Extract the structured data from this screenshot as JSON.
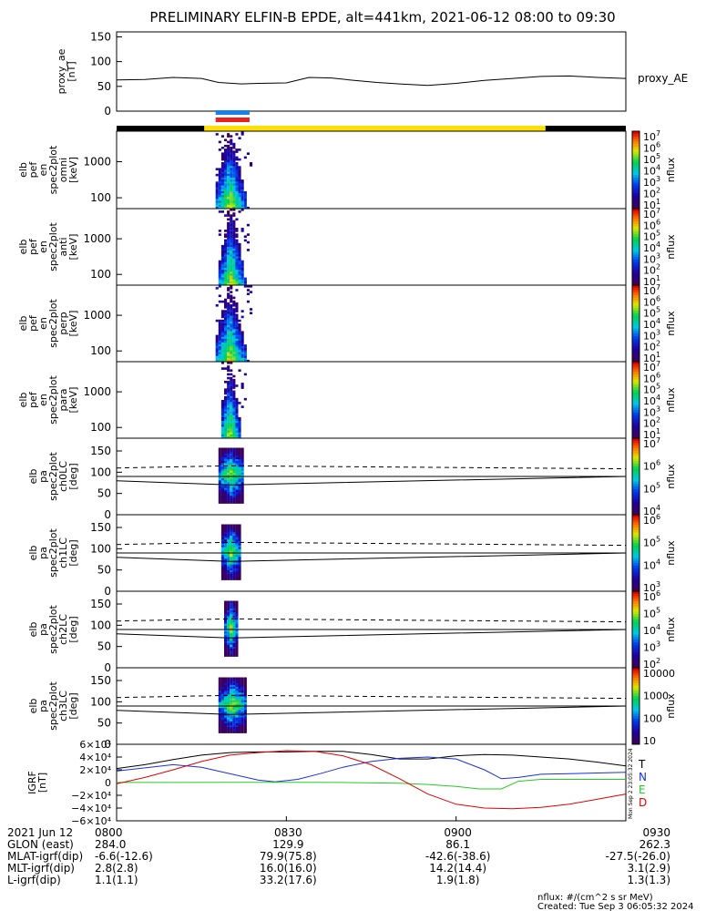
{
  "title": "PRELIMINARY ELFIN-B EPDE, alt=441km, 2021-06-12 08:00 to 09:30",
  "time_range": [
    "08:00",
    "09:30"
  ],
  "bottom_axis": {
    "tick_labels": [
      "0800",
      "0830",
      "0900",
      "0930"
    ],
    "tick_times_min": [
      0,
      30,
      60,
      90
    ]
  },
  "ephemeris": {
    "rows": [
      {
        "label": "2021 Jun 12",
        "values": [
          "0800",
          "0830",
          "0900",
          "0930"
        ]
      },
      {
        "label": "GLON (east)",
        "values": [
          "284.0",
          "129.9",
          "86.1",
          "262.3"
        ]
      },
      {
        "label": "MLAT-igrf(dip)",
        "values": [
          "-6.6(-12.6)",
          "79.9(75.8)",
          "-42.6(-38.6)",
          "-27.5(-26.0)"
        ]
      },
      {
        "label": "MLT-igrf(dip)",
        "values": [
          "2.8(2.8)",
          "16.0(16.0)",
          "14.2(14.4)",
          "3.1(2.9)"
        ]
      },
      {
        "label": "L-igrf(dip)",
        "values": [
          "1.1(1.1)",
          "33.2(17.6)",
          "1.9(1.8)",
          "1.3(1.3)"
        ]
      }
    ]
  },
  "footer": {
    "units": "nflux: #/(cm^2 s sr MeV)",
    "created": "Created: Tue Sep  3 06:05:32 2024",
    "side_stamp": "Mon Sep 2 23:05:32 2024"
  },
  "colors": {
    "orbit_black": "#000000",
    "orbit_yellow": "#ffe000",
    "science_blue": "#1e7ee8",
    "science_red": "#e8201e",
    "grf_T": "#000000",
    "grf_N": "#1a2ee0",
    "grf_E": "#22cc22",
    "grf_D": "#e00000"
  },
  "chart_data": [
    {
      "type": "line",
      "panel": "proxy_ae",
      "ylabel": [
        "proxy_ae",
        "[nT]"
      ],
      "ytick_labels": [
        "150",
        "100",
        "50",
        "0"
      ],
      "ylim": [
        0,
        160
      ],
      "series": [
        {
          "name": "proxy_AE",
          "x": [
            0,
            5,
            10,
            15,
            18,
            22,
            25,
            30,
            34,
            38,
            42,
            46,
            50,
            55,
            60,
            65,
            70,
            75,
            80,
            85,
            90
          ],
          "y": [
            63,
            64,
            68,
            66,
            58,
            55,
            56,
            57,
            68,
            67,
            62,
            58,
            55,
            52,
            56,
            62,
            66,
            70,
            71,
            68,
            66
          ]
        }
      ],
      "grid": false
    },
    {
      "type": "bar",
      "panel": "orbit_bar",
      "segments": [
        {
          "color": "black",
          "start_min": 0,
          "end_min": 15.5
        },
        {
          "color": "yellow",
          "start_min": 15.5,
          "end_min": 75.8
        },
        {
          "color": "black",
          "start_min": 75.8,
          "end_min": 90
        }
      ],
      "science_zone": {
        "start_min": 17.5,
        "end_min": 23.5
      }
    },
    {
      "type": "heatmap",
      "panel": "omni",
      "ylabel": [
        "elb",
        "pef",
        "en",
        "spec2plot",
        "omni",
        "[keV]"
      ],
      "ytick_labels": [
        "1000",
        "100"
      ],
      "log_y": true,
      "ylim": [
        50,
        7000
      ],
      "colorbar": {
        "label": "nflux",
        "tick_labels": [
          "10^7",
          "10^6",
          "10^5",
          "10^4",
          "10^3",
          "10^2",
          "10^1"
        ]
      },
      "active_x": [
        17.5,
        23.5
      ],
      "peak_x": 19.8
    },
    {
      "type": "heatmap",
      "panel": "anti",
      "ylabel": [
        "elb",
        "pef",
        "en",
        "spec2plot",
        "anti",
        "[keV]"
      ],
      "ytick_labels": [
        "1000",
        "100"
      ],
      "log_y": true,
      "ylim": [
        50,
        7000
      ],
      "colorbar": {
        "label": "nflux",
        "tick_labels": [
          "10^7",
          "10^6",
          "10^5",
          "10^4",
          "10^3",
          "10^2",
          "10^1"
        ]
      },
      "active_x": [
        18.0,
        23.0
      ],
      "peak_x": 20.0
    },
    {
      "type": "heatmap",
      "panel": "perp",
      "ylabel": [
        "elb",
        "pef",
        "en",
        "spec2plot",
        "perp",
        "[keV]"
      ],
      "ytick_labels": [
        "1000",
        "100"
      ],
      "log_y": true,
      "ylim": [
        50,
        7000
      ],
      "colorbar": {
        "label": "nflux",
        "tick_labels": [
          "10^7",
          "10^6",
          "10^5",
          "10^4",
          "10^3",
          "10^2",
          "10^1"
        ]
      },
      "active_x": [
        17.5,
        23.5
      ],
      "peak_x": 19.8
    },
    {
      "type": "heatmap",
      "panel": "para",
      "ylabel": [
        "elb",
        "pef",
        "en",
        "spec2plot",
        "para",
        "[keV]"
      ],
      "ytick_labels": [
        "1000",
        "100"
      ],
      "log_y": true,
      "ylim": [
        50,
        7000
      ],
      "colorbar": {
        "label": "nflux",
        "tick_labels": [
          "10^7",
          "10^6",
          "10^5",
          "10^4",
          "10^3",
          "10^2",
          "10^1"
        ]
      },
      "active_x": [
        18.5,
        22.5
      ],
      "peak_x": 19.8
    },
    {
      "type": "heatmap",
      "panel": "ch0LC",
      "ylabel": [
        "elb",
        "pa",
        "spec2plot",
        "ch0LC",
        "[deg]"
      ],
      "ytick_labels": [
        "150",
        "100",
        "50",
        "0"
      ],
      "ylim": [
        0,
        180
      ],
      "colorbar": {
        "label": "nflux",
        "tick_labels": [
          "10^7",
          "10^6",
          "10^5",
          "10^4"
        ]
      },
      "active_x": [
        18.0,
        22.0
      ],
      "loss_cone_line": {
        "x": [
          0,
          20,
          90
        ],
        "y": [
          80,
          70,
          90
        ]
      },
      "anti_loss_cone_dashed": {
        "x": [
          0,
          20,
          90
        ],
        "y": [
          110,
          115,
          108
        ]
      },
      "ninety_line": 90
    },
    {
      "type": "heatmap",
      "panel": "ch1LC",
      "ylabel": [
        "elb",
        "pa",
        "spec2plot",
        "ch1LC",
        "[deg]"
      ],
      "ytick_labels": [
        "150",
        "100",
        "50",
        "0"
      ],
      "ylim": [
        0,
        180
      ],
      "colorbar": {
        "label": "nflux",
        "tick_labels": [
          "10^6",
          "10^5",
          "10^4",
          "10^3"
        ]
      },
      "active_x": [
        18.5,
        21.5
      ],
      "loss_cone_line": {
        "x": [
          0,
          20,
          90
        ],
        "y": [
          80,
          70,
          90
        ]
      },
      "anti_loss_cone_dashed": {
        "x": [
          0,
          20,
          90
        ],
        "y": [
          110,
          115,
          108
        ]
      },
      "ninety_line": 90
    },
    {
      "type": "heatmap",
      "panel": "ch2LC",
      "ylabel": [
        "elb",
        "pa",
        "spec2plot",
        "ch2LC",
        "[deg]"
      ],
      "ytick_labels": [
        "150",
        "100",
        "50",
        "0"
      ],
      "ylim": [
        0,
        180
      ],
      "colorbar": {
        "label": "nflux",
        "tick_labels": [
          "10^6",
          "10^5",
          "10^4",
          "10^3",
          "10^2"
        ]
      },
      "active_x": [
        19.0,
        21.0
      ],
      "loss_cone_line": {
        "x": [
          0,
          20,
          90
        ],
        "y": [
          80,
          70,
          90
        ]
      },
      "anti_loss_cone_dashed": {
        "x": [
          0,
          20,
          90
        ],
        "y": [
          110,
          115,
          108
        ]
      },
      "ninety_line": 90
    },
    {
      "type": "heatmap",
      "panel": "ch3LC",
      "ylabel": [
        "elb",
        "pa",
        "spec2plot",
        "ch3LC",
        "[deg]"
      ],
      "ytick_labels": [
        "150",
        "100",
        "50",
        "0"
      ],
      "ylim": [
        0,
        180
      ],
      "colorbar": {
        "label": "nflux",
        "tick_labels": [
          "10000",
          "1000",
          "100",
          "10"
        ]
      },
      "active_x": [
        18.0,
        22.5
      ],
      "loss_cone_line": {
        "x": [
          0,
          20,
          90
        ],
        "y": [
          80,
          70,
          90
        ]
      },
      "anti_loss_cone_dashed": {
        "x": [
          0,
          20,
          90
        ],
        "y": [
          110,
          115,
          108
        ]
      },
      "ninety_line": 90
    },
    {
      "type": "line",
      "panel": "IGRF",
      "ylabel": [
        "IGRF",
        "[nT]"
      ],
      "ytick_labels": [
        "6×10⁴",
        "4×10⁴",
        "2×10⁴",
        "0",
        "−2×10⁴",
        "−4×10⁴",
        "−6×10⁴"
      ],
      "ytick_values": [
        60000,
        40000,
        20000,
        0,
        -20000,
        -40000,
        -60000
      ],
      "ylim": [
        -60000,
        60000
      ],
      "series": [
        {
          "name": "T",
          "x": [
            0,
            5,
            10,
            15,
            20,
            25,
            30,
            35,
            40,
            45,
            50,
            55,
            60,
            65,
            70,
            75,
            80,
            85,
            90
          ],
          "y": [
            22000,
            28000,
            36000,
            43000,
            47000,
            48000,
            48000,
            49000,
            49000,
            44000,
            37000,
            37000,
            42000,
            44000,
            43000,
            40000,
            37000,
            32000,
            26000
          ]
        },
        {
          "name": "N",
          "x": [
            0,
            5,
            10,
            15,
            20,
            25,
            28,
            32,
            36,
            40,
            45,
            50,
            55,
            60,
            65,
            68,
            71,
            75,
            80,
            85,
            90
          ],
          "y": [
            18000,
            23000,
            28000,
            24000,
            14000,
            4000,
            1000,
            5000,
            14000,
            24000,
            33000,
            38000,
            40000,
            37000,
            20000,
            6000,
            8000,
            13000,
            14000,
            15000,
            16000
          ]
        },
        {
          "name": "E",
          "x": [
            0,
            10,
            20,
            30,
            40,
            50,
            55,
            60,
            64,
            68,
            71,
            75,
            80,
            85,
            90
          ],
          "y": [
            100,
            200,
            300,
            400,
            200,
            -1000,
            -3000,
            -6000,
            -10000,
            -10000,
            2000,
            5000,
            5000,
            5000,
            5000
          ]
        },
        {
          "name": "D",
          "x": [
            0,
            5,
            10,
            15,
            20,
            25,
            30,
            35,
            40,
            45,
            50,
            55,
            60,
            65,
            70,
            75,
            80,
            85,
            90
          ],
          "y": [
            -2000,
            8000,
            20000,
            33000,
            43000,
            47000,
            50000,
            49000,
            42000,
            28000,
            6000,
            -18000,
            -34000,
            -40000,
            -41000,
            -39000,
            -34000,
            -26000,
            -18000
          ]
        }
      ],
      "legend": [
        "T",
        "N",
        "E",
        "D"
      ]
    }
  ]
}
